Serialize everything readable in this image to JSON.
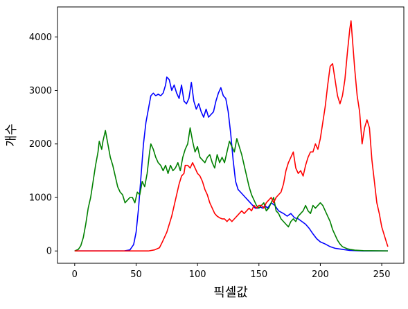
{
  "chart_data": {
    "type": "line",
    "title": "",
    "xlabel": "픽셀값",
    "ylabel": "개수",
    "xlim": [
      -14,
      268
    ],
    "ylim": [
      -230,
      4560
    ],
    "x_ticks": [
      0,
      50,
      100,
      150,
      200,
      250
    ],
    "y_ticks": [
      0,
      1000,
      2000,
      3000,
      4000
    ],
    "grid": false,
    "legend": "none",
    "series": [
      {
        "name": "",
        "color": "#0000ff",
        "points": [
          [
            0,
            0
          ],
          [
            40,
            0
          ],
          [
            45,
            20
          ],
          [
            48,
            120
          ],
          [
            50,
            350
          ],
          [
            52,
            800
          ],
          [
            54,
            1400
          ],
          [
            56,
            2000
          ],
          [
            58,
            2400
          ],
          [
            60,
            2650
          ],
          [
            62,
            2900
          ],
          [
            64,
            2950
          ],
          [
            66,
            2900
          ],
          [
            68,
            2930
          ],
          [
            70,
            2900
          ],
          [
            72,
            2950
          ],
          [
            74,
            3100
          ],
          [
            75,
            3250
          ],
          [
            77,
            3200
          ],
          [
            79,
            3000
          ],
          [
            81,
            3100
          ],
          [
            83,
            2950
          ],
          [
            85,
            2850
          ],
          [
            87,
            3100
          ],
          [
            89,
            2800
          ],
          [
            91,
            2750
          ],
          [
            93,
            2850
          ],
          [
            95,
            3150
          ],
          [
            97,
            2800
          ],
          [
            99,
            2650
          ],
          [
            101,
            2750
          ],
          [
            103,
            2600
          ],
          [
            105,
            2500
          ],
          [
            107,
            2650
          ],
          [
            109,
            2500
          ],
          [
            111,
            2550
          ],
          [
            113,
            2600
          ],
          [
            115,
            2800
          ],
          [
            117,
            2950
          ],
          [
            119,
            3050
          ],
          [
            121,
            2900
          ],
          [
            123,
            2850
          ],
          [
            125,
            2600
          ],
          [
            127,
            2200
          ],
          [
            129,
            1700
          ],
          [
            131,
            1300
          ],
          [
            133,
            1150
          ],
          [
            135,
            1100
          ],
          [
            137,
            1050
          ],
          [
            139,
            1000
          ],
          [
            141,
            950
          ],
          [
            143,
            900
          ],
          [
            145,
            850
          ],
          [
            147,
            800
          ],
          [
            149,
            800
          ],
          [
            151,
            820
          ],
          [
            153,
            800
          ],
          [
            155,
            850
          ],
          [
            157,
            800
          ],
          [
            160,
            900
          ],
          [
            163,
            850
          ],
          [
            166,
            750
          ],
          [
            170,
            700
          ],
          [
            173,
            650
          ],
          [
            176,
            700
          ],
          [
            179,
            620
          ],
          [
            182,
            600
          ],
          [
            185,
            550
          ],
          [
            188,
            500
          ],
          [
            191,
            420
          ],
          [
            194,
            320
          ],
          [
            197,
            230
          ],
          [
            200,
            170
          ],
          [
            204,
            130
          ],
          [
            208,
            80
          ],
          [
            212,
            50
          ],
          [
            218,
            30
          ],
          [
            224,
            10
          ],
          [
            235,
            0
          ],
          [
            255,
            0
          ]
        ]
      },
      {
        "name": "",
        "color": "#008000",
        "points": [
          [
            0,
            0
          ],
          [
            3,
            30
          ],
          [
            5,
            100
          ],
          [
            7,
            250
          ],
          [
            9,
            500
          ],
          [
            11,
            800
          ],
          [
            13,
            1000
          ],
          [
            15,
            1300
          ],
          [
            17,
            1600
          ],
          [
            19,
            1850
          ],
          [
            20,
            2050
          ],
          [
            22,
            1900
          ],
          [
            23,
            2050
          ],
          [
            25,
            2250
          ],
          [
            27,
            2000
          ],
          [
            29,
            1750
          ],
          [
            31,
            1600
          ],
          [
            33,
            1400
          ],
          [
            35,
            1200
          ],
          [
            37,
            1100
          ],
          [
            39,
            1050
          ],
          [
            41,
            900
          ],
          [
            43,
            950
          ],
          [
            45,
            1000
          ],
          [
            47,
            1000
          ],
          [
            49,
            900
          ],
          [
            51,
            1100
          ],
          [
            53,
            1050
          ],
          [
            55,
            1300
          ],
          [
            57,
            1200
          ],
          [
            59,
            1450
          ],
          [
            61,
            1850
          ],
          [
            62,
            2000
          ],
          [
            64,
            1900
          ],
          [
            66,
            1750
          ],
          [
            68,
            1650
          ],
          [
            70,
            1600
          ],
          [
            72,
            1500
          ],
          [
            74,
            1600
          ],
          [
            76,
            1450
          ],
          [
            78,
            1600
          ],
          [
            80,
            1500
          ],
          [
            82,
            1550
          ],
          [
            84,
            1650
          ],
          [
            86,
            1500
          ],
          [
            88,
            1750
          ],
          [
            90,
            1900
          ],
          [
            92,
            2000
          ],
          [
            94,
            2300
          ],
          [
            96,
            2050
          ],
          [
            98,
            1850
          ],
          [
            100,
            1950
          ],
          [
            102,
            1750
          ],
          [
            104,
            1700
          ],
          [
            106,
            1650
          ],
          [
            108,
            1750
          ],
          [
            110,
            1800
          ],
          [
            112,
            1650
          ],
          [
            114,
            1550
          ],
          [
            116,
            1800
          ],
          [
            118,
            1650
          ],
          [
            120,
            1750
          ],
          [
            122,
            1650
          ],
          [
            124,
            1850
          ],
          [
            126,
            2050
          ],
          [
            128,
            1950
          ],
          [
            130,
            1850
          ],
          [
            132,
            2100
          ],
          [
            134,
            1950
          ],
          [
            136,
            1800
          ],
          [
            138,
            1600
          ],
          [
            140,
            1400
          ],
          [
            142,
            1200
          ],
          [
            144,
            1050
          ],
          [
            146,
            950
          ],
          [
            148,
            850
          ],
          [
            150,
            800
          ],
          [
            152,
            850
          ],
          [
            154,
            900
          ],
          [
            156,
            750
          ],
          [
            158,
            800
          ],
          [
            160,
            900
          ],
          [
            162,
            1000
          ],
          [
            164,
            750
          ],
          [
            166,
            700
          ],
          [
            168,
            600
          ],
          [
            170,
            550
          ],
          [
            172,
            500
          ],
          [
            174,
            450
          ],
          [
            176,
            550
          ],
          [
            178,
            600
          ],
          [
            180,
            550
          ],
          [
            182,
            650
          ],
          [
            184,
            700
          ],
          [
            186,
            750
          ],
          [
            188,
            850
          ],
          [
            190,
            750
          ],
          [
            192,
            700
          ],
          [
            194,
            850
          ],
          [
            196,
            800
          ],
          [
            198,
            850
          ],
          [
            200,
            900
          ],
          [
            202,
            850
          ],
          [
            204,
            750
          ],
          [
            206,
            650
          ],
          [
            208,
            550
          ],
          [
            210,
            400
          ],
          [
            212,
            300
          ],
          [
            214,
            200
          ],
          [
            216,
            130
          ],
          [
            218,
            80
          ],
          [
            222,
            40
          ],
          [
            228,
            15
          ],
          [
            235,
            5
          ],
          [
            255,
            0
          ]
        ]
      },
      {
        "name": "",
        "color": "#ff0000",
        "points": [
          [
            0,
            0
          ],
          [
            60,
            0
          ],
          [
            65,
            20
          ],
          [
            69,
            60
          ],
          [
            71,
            150
          ],
          [
            73,
            250
          ],
          [
            75,
            350
          ],
          [
            77,
            500
          ],
          [
            79,
            650
          ],
          [
            81,
            850
          ],
          [
            83,
            1050
          ],
          [
            85,
            1250
          ],
          [
            87,
            1400
          ],
          [
            89,
            1450
          ],
          [
            90,
            1600
          ],
          [
            92,
            1600
          ],
          [
            94,
            1550
          ],
          [
            96,
            1650
          ],
          [
            98,
            1550
          ],
          [
            100,
            1450
          ],
          [
            102,
            1400
          ],
          [
            104,
            1300
          ],
          [
            106,
            1150
          ],
          [
            108,
            1050
          ],
          [
            110,
            900
          ],
          [
            112,
            800
          ],
          [
            114,
            700
          ],
          [
            116,
            650
          ],
          [
            118,
            620
          ],
          [
            120,
            600
          ],
          [
            122,
            600
          ],
          [
            124,
            550
          ],
          [
            126,
            600
          ],
          [
            128,
            550
          ],
          [
            130,
            600
          ],
          [
            132,
            650
          ],
          [
            134,
            700
          ],
          [
            136,
            750
          ],
          [
            138,
            700
          ],
          [
            140,
            750
          ],
          [
            142,
            800
          ],
          [
            144,
            750
          ],
          [
            146,
            850
          ],
          [
            148,
            800
          ],
          [
            150,
            850
          ],
          [
            152,
            850
          ],
          [
            154,
            800
          ],
          [
            156,
            900
          ],
          [
            158,
            950
          ],
          [
            160,
            1000
          ],
          [
            162,
            900
          ],
          [
            164,
            1000
          ],
          [
            166,
            1050
          ],
          [
            168,
            1100
          ],
          [
            170,
            1250
          ],
          [
            172,
            1500
          ],
          [
            174,
            1650
          ],
          [
            176,
            1750
          ],
          [
            178,
            1850
          ],
          [
            180,
            1550
          ],
          [
            182,
            1450
          ],
          [
            184,
            1500
          ],
          [
            186,
            1400
          ],
          [
            188,
            1600
          ],
          [
            190,
            1750
          ],
          [
            192,
            1850
          ],
          [
            194,
            1850
          ],
          [
            196,
            2000
          ],
          [
            198,
            1900
          ],
          [
            200,
            2100
          ],
          [
            202,
            2400
          ],
          [
            204,
            2700
          ],
          [
            206,
            3100
          ],
          [
            208,
            3450
          ],
          [
            210,
            3500
          ],
          [
            212,
            3200
          ],
          [
            214,
            2900
          ],
          [
            216,
            2750
          ],
          [
            218,
            2900
          ],
          [
            220,
            3200
          ],
          [
            222,
            3700
          ],
          [
            224,
            4150
          ],
          [
            225,
            4300
          ],
          [
            226,
            4000
          ],
          [
            228,
            3400
          ],
          [
            230,
            2900
          ],
          [
            232,
            2600
          ],
          [
            234,
            2000
          ],
          [
            236,
            2300
          ],
          [
            238,
            2450
          ],
          [
            240,
            2300
          ],
          [
            242,
            1700
          ],
          [
            244,
            1300
          ],
          [
            246,
            900
          ],
          [
            248,
            700
          ],
          [
            250,
            450
          ],
          [
            252,
            300
          ],
          [
            254,
            150
          ],
          [
            255,
            80
          ]
        ]
      }
    ]
  }
}
